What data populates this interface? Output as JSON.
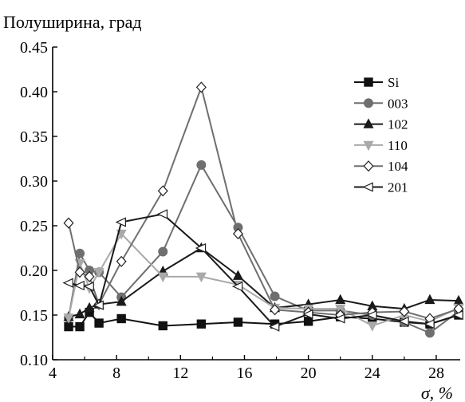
{
  "chart_data": {
    "type": "line",
    "title": "",
    "ylabel": "Полуширина, град",
    "xlabel": "σ, %",
    "xlim": [
      4,
      29.5
    ],
    "ylim": [
      0.1,
      0.45
    ],
    "x_ticks": [
      4,
      8,
      12,
      16,
      20,
      24,
      28
    ],
    "y_ticks": [
      0.1,
      0.15,
      0.2,
      0.25,
      0.3,
      0.35,
      0.4,
      0.45
    ],
    "x_tick_labels": [
      "4",
      "8",
      "12",
      "16",
      "20",
      "24",
      "28"
    ],
    "y_tick_labels": [
      "0.10",
      "0.15",
      "0.20",
      "0.25",
      "0.30",
      "0.35",
      "0.40",
      "0.45"
    ],
    "grid": false,
    "legend_position": "top-right",
    "series": [
      {
        "name": "Si",
        "marker": "square-filled",
        "color": "#111111",
        "x": [
          5.0,
          5.7,
          6.3,
          6.9,
          8.3,
          10.9,
          13.3,
          15.6,
          17.9,
          20.0,
          22.0,
          24.0,
          26.0,
          27.6,
          29.4
        ],
        "y": [
          0.137,
          0.137,
          0.153,
          0.141,
          0.146,
          0.138,
          0.14,
          0.142,
          0.14,
          0.143,
          0.148,
          0.146,
          0.142,
          0.14,
          0.15
        ]
      },
      {
        "name": "003",
        "marker": "circle-filled",
        "color": "#6f6f6f",
        "x": [
          5.0,
          5.7,
          6.3,
          6.9,
          8.3,
          10.9,
          13.3,
          15.6,
          17.9,
          20.0,
          22.0,
          24.0,
          26.0,
          27.6,
          29.4
        ],
        "y": [
          0.147,
          0.219,
          0.2,
          0.198,
          0.17,
          0.221,
          0.318,
          0.248,
          0.171,
          0.155,
          0.155,
          0.15,
          0.142,
          0.13,
          0.154
        ]
      },
      {
        "name": "102",
        "marker": "triangle-up-filled",
        "color": "#1a1a1a",
        "x": [
          5.0,
          5.7,
          6.3,
          6.9,
          8.3,
          10.9,
          13.3,
          15.6,
          17.9,
          20.0,
          22.0,
          24.0,
          26.0,
          27.6,
          29.4
        ],
        "y": [
          0.148,
          0.151,
          0.158,
          0.162,
          0.165,
          0.199,
          0.225,
          0.194,
          0.158,
          0.162,
          0.167,
          0.16,
          0.157,
          0.167,
          0.166
        ]
      },
      {
        "name": "110",
        "marker": "triangle-down-filled",
        "color": "#a9a9a9",
        "x": [
          5.0,
          5.7,
          6.3,
          6.9,
          8.3,
          10.9,
          13.3,
          15.6,
          17.9,
          20.0,
          22.0,
          24.0,
          26.0,
          27.6,
          29.4
        ],
        "y": [
          0.147,
          0.208,
          0.18,
          0.198,
          0.241,
          0.193,
          0.193,
          0.184,
          0.158,
          0.157,
          0.157,
          0.138,
          0.15,
          0.143,
          0.158
        ]
      },
      {
        "name": "104",
        "marker": "diamond-open",
        "color": "#6f6f6f",
        "x": [
          5.0,
          5.7,
          6.3,
          6.9,
          8.3,
          10.9,
          13.3,
          15.6,
          17.9,
          20.0,
          22.0,
          24.0,
          26.0,
          27.6,
          29.4
        ],
        "y": [
          0.253,
          0.198,
          0.193,
          0.162,
          0.21,
          0.289,
          0.405,
          0.241,
          0.156,
          0.153,
          0.15,
          0.153,
          0.154,
          0.146,
          0.157
        ]
      },
      {
        "name": "201",
        "marker": "triangle-left-open",
        "color": "#1a1a1a",
        "x": [
          5.0,
          5.7,
          6.3,
          6.9,
          8.3,
          10.9,
          13.3,
          15.6,
          17.9,
          20.0,
          22.0,
          24.0,
          26.0,
          27.6,
          29.4
        ],
        "y": [
          0.186,
          0.183,
          0.182,
          0.161,
          0.254,
          0.263,
          0.225,
          0.182,
          0.137,
          0.151,
          0.146,
          0.15,
          0.143,
          0.14,
          0.15
        ]
      }
    ]
  }
}
